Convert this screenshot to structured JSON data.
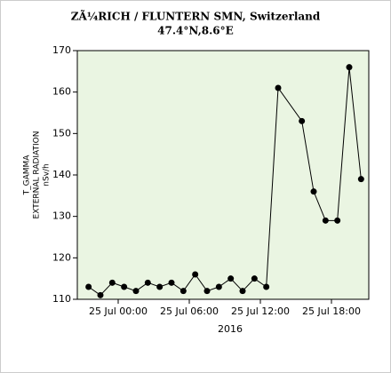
{
  "chart_data": {
    "type": "line",
    "title": "ZÃ¼RICH / FLUNTERN SMN, Switzerland",
    "subtitle": "47.4°N,8.6°E",
    "y_label": [
      "T_GAMMA",
      "EXTERNAL RADIATION",
      "nSv/h"
    ],
    "x_label": "2016",
    "x": [
      "2016-07-24 21:30",
      "2016-07-24 22:30",
      "2016-07-24 23:30",
      "2016-07-25 00:30",
      "2016-07-25 01:30",
      "2016-07-25 02:30",
      "2016-07-25 03:30",
      "2016-07-25 04:30",
      "2016-07-25 05:30",
      "2016-07-25 06:30",
      "2016-07-25 07:30",
      "2016-07-25 08:30",
      "2016-07-25 09:30",
      "2016-07-25 10:30",
      "2016-07-25 11:30",
      "2016-07-25 12:30",
      "2016-07-25 13:30",
      "2016-07-25 15:30",
      "2016-07-25 16:30",
      "2016-07-25 17:30",
      "2016-07-25 18:30",
      "2016-07-25 19:30",
      "2016-07-25 20:30"
    ],
    "series": [
      {
        "name": "T_GAMMA",
        "color": "#000000",
        "values": [
          113,
          111,
          114,
          113,
          112,
          114,
          113,
          114,
          112,
          116,
          112,
          113,
          115,
          112,
          115,
          113,
          161,
          153,
          136,
          129,
          129,
          166,
          139
        ]
      }
    ],
    "xlim": [
      "2016-07-24 20:33",
      "2016-07-25 21:09"
    ],
    "xticks": [
      {
        "value": "2016-07-25 00:00",
        "label": "25 Jul 00:00"
      },
      {
        "value": "2016-07-25 06:00",
        "label": "25 Jul 06:00"
      },
      {
        "value": "2016-07-25 12:00",
        "label": "25 Jul 12:00"
      },
      {
        "value": "2016-07-25 18:00",
        "label": "25 Jul 18:00"
      }
    ],
    "ylim": [
      110,
      170
    ],
    "yticks": [
      110,
      120,
      130,
      140,
      150,
      160,
      170
    ],
    "plot_background": "#eaf5e2"
  }
}
